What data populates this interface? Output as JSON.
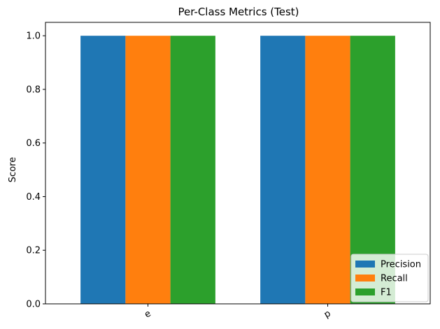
{
  "chart_data": {
    "type": "bar",
    "title": "Per-Class Metrics (Test)",
    "xlabel": "",
    "ylabel": "Score",
    "categories": [
      "e",
      "p"
    ],
    "series": [
      {
        "name": "Precision",
        "color": "#1f77b4",
        "values": [
          1.0,
          1.0
        ]
      },
      {
        "name": "Recall",
        "color": "#ff7f0e",
        "values": [
          1.0,
          1.0
        ]
      },
      {
        "name": "F1",
        "color": "#2ca02c",
        "values": [
          1.0,
          1.0
        ]
      }
    ],
    "ylim": [
      0,
      1.05
    ],
    "yticks": [
      "0.0",
      "0.2",
      "0.4",
      "0.6",
      "0.8",
      "1.0"
    ],
    "grid": false,
    "legend_position": "lower-right"
  }
}
